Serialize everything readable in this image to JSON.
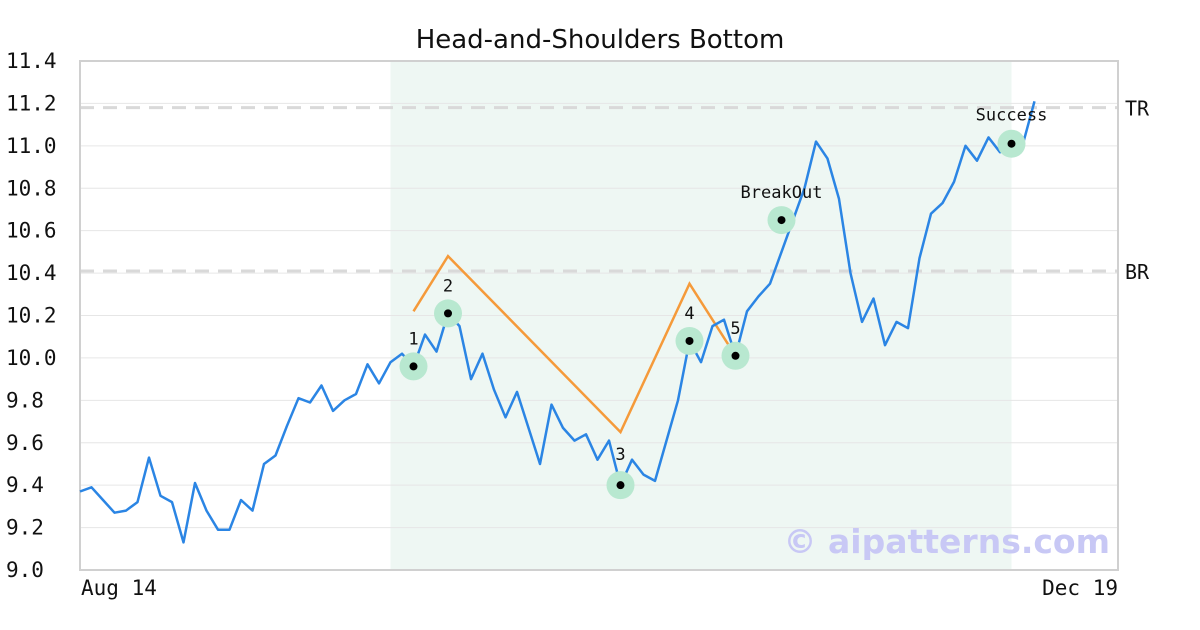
{
  "chart_data": {
    "type": "line",
    "title": "Head-and-Shoulders Bottom",
    "xlabel": "",
    "ylabel": "",
    "ylim": [
      9.0,
      11.4
    ],
    "y_ticks": [
      "9.0",
      "9.2",
      "9.4",
      "9.6",
      "9.8",
      "10.0",
      "10.2",
      "10.4",
      "10.6",
      "10.8",
      "11.0",
      "11.2",
      "11.4"
    ],
    "x_tick_labels": [
      "Aug 14",
      "Dec 19"
    ],
    "grid": true,
    "series": [
      {
        "color": "#2b85e4",
        "values": [
          9.37,
          9.39,
          9.33,
          9.27,
          9.28,
          9.32,
          9.53,
          9.35,
          9.32,
          9.13,
          9.41,
          9.28,
          9.19,
          9.19,
          9.33,
          9.28,
          9.5,
          9.54,
          9.68,
          9.81,
          9.79,
          9.87,
          9.75,
          9.8,
          9.83,
          9.97,
          9.88,
          9.98,
          10.02,
          9.96,
          10.11,
          10.03,
          10.21,
          10.15,
          9.9,
          10.02,
          9.85,
          9.72,
          9.84,
          9.67,
          9.5,
          9.78,
          9.67,
          9.61,
          9.64,
          9.52,
          9.61,
          9.4,
          9.52,
          9.45,
          9.42,
          9.61,
          9.8,
          10.08,
          9.98,
          10.15,
          10.18,
          10.01,
          10.22,
          10.29,
          10.35,
          10.5,
          10.65,
          10.8,
          11.02,
          10.94,
          10.75,
          10.4,
          10.17,
          10.28,
          10.06,
          10.17,
          10.14,
          10.47,
          10.68,
          10.73,
          10.83,
          11.0,
          10.93,
          11.04,
          10.97,
          11.01,
          11.01,
          11.21
        ]
      }
    ],
    "pattern_line": {
      "color": "#f59a3a",
      "points": [
        [
          29,
          10.22
        ],
        [
          32,
          10.48
        ],
        [
          47,
          9.65
        ],
        [
          53,
          10.35
        ],
        [
          57,
          10.01
        ]
      ]
    },
    "pattern_zone": {
      "x_start": 27,
      "x_end": 81,
      "color": "#eef7f3"
    },
    "reference_lines": [
      {
        "label": "TR",
        "value": 11.18
      },
      {
        "label": "BR",
        "value": 10.41
      }
    ],
    "annotations": [
      {
        "label": "1",
        "x": 29,
        "y": 9.96
      },
      {
        "label": "2",
        "x": 32,
        "y": 10.21
      },
      {
        "label": "3",
        "x": 47,
        "y": 9.4
      },
      {
        "label": "4",
        "x": 53,
        "y": 10.08
      },
      {
        "label": "5",
        "x": 57,
        "y": 10.01
      },
      {
        "label": "BreakOut",
        "x": 61,
        "y": 10.65
      },
      {
        "label": "Success",
        "x": 81,
        "y": 11.01
      }
    ],
    "watermark": "© aipatterns.com",
    "colors": {
      "marker_halo": "#b8e8d0",
      "marker_dot": "#000000",
      "grid": "#e6e6e6",
      "axes": "#d0d0d0",
      "ref_line": "#d9d9d9"
    }
  }
}
